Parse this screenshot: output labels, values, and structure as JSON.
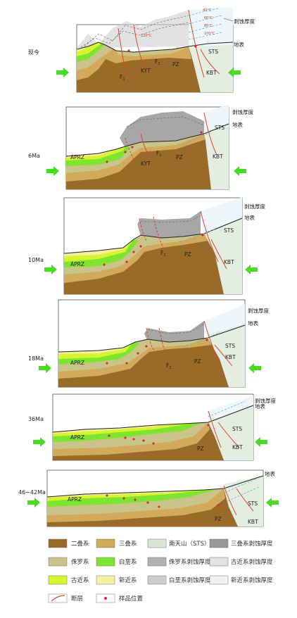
{
  "stages": [
    {
      "label": "现今",
      "markers": {
        "erosion": "剥蚀厚度",
        "surface": "地表",
        "sts": "STS",
        "kbt": "KBT",
        "pz": "PZ",
        "kyt": "KYT",
        "f1": "F",
        "f1b": "F"
      },
      "temps": [
        "40°C",
        "60°C",
        "80°C",
        "100°C",
        "120°C"
      ]
    },
    {
      "label": "6Ma",
      "markers": {
        "erosion": "剥蚀厚度",
        "surface": "地表",
        "sts": "STS",
        "kbt": "KBT",
        "pz": "PZ",
        "kyt": "KYT",
        "f1": "F",
        "aprz": "APRZ"
      }
    },
    {
      "label": "10Ma",
      "markers": {
        "erosion": "剥蚀厚度",
        "surface": "地表",
        "sts": "STS",
        "kbt": "KBT",
        "pz": "PZ",
        "f1": "F",
        "aprz": "APRZ"
      }
    },
    {
      "label": "18Ma",
      "markers": {
        "erosion": "剥蚀厚度",
        "surface": "地表",
        "sts": "STS",
        "kbt": "KBT",
        "pz": "PZ",
        "f1": "F",
        "aprz": "APRZ"
      }
    },
    {
      "label": "36Ma",
      "markers": {
        "erosion": "剥蚀厚度",
        "surface": "地表",
        "sts": "STS",
        "kbt": "KBT",
        "pz": "PZ",
        "aprz": "APRZ"
      }
    },
    {
      "label": "46~42Ma",
      "markers": {
        "surface": "地表",
        "sts": "STS",
        "kbt": "KBT",
        "pz": "PZ",
        "aprz": "APRZ"
      }
    }
  ],
  "subscript": "1",
  "legend": [
    {
      "label": "二叠系",
      "color": "#9a6a28"
    },
    {
      "label": "三叠系",
      "color": "#d2aa5c"
    },
    {
      "label": "南天山（STS）",
      "color": "#d9e6d6"
    },
    {
      "label": "三叠系剥蚀厚度",
      "color": "#999999"
    },
    {
      "label": "侏罗系",
      "color": "#c9c487"
    },
    {
      "label": "白垩系",
      "color": "#7ee52e"
    },
    {
      "label": "侏罗系剥蚀厚度",
      "color": "#b1b1b1"
    },
    {
      "label": "古近系剥蚀厚度",
      "color": "#e2e2e2"
    },
    {
      "label": "古近系",
      "color": "#d6f52f"
    },
    {
      "label": "新近系",
      "color": "#f4f0a0"
    },
    {
      "label": "白垩系剥蚀厚度",
      "color": "#cdcdcd"
    },
    {
      "label": "新近系剥蚀厚度",
      "color": "#f1f1f1"
    },
    {
      "label": "断层",
      "color": "#e0452c"
    },
    {
      "label": "样品位置",
      "color": "#e8262a"
    }
  ],
  "colors": {
    "arrow": "#44dd22",
    "fault": "#e0452c",
    "sample": "#e8262a",
    "frame": "#555555"
  }
}
